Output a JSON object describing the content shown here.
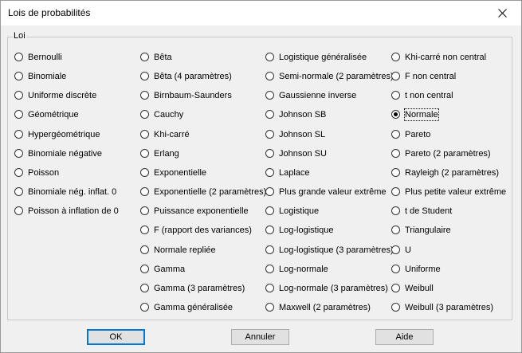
{
  "window": {
    "title": "Lois de probabilités"
  },
  "group": {
    "label": "Loi"
  },
  "columns": [
    [
      {
        "label": "Bernoulli",
        "checked": false
      },
      {
        "label": "Binomiale",
        "checked": false
      },
      {
        "label": "Uniforme discrète",
        "checked": false
      },
      {
        "label": "Géométrique",
        "checked": false
      },
      {
        "label": "Hypergéométrique",
        "checked": false
      },
      {
        "label": "Binomiale négative",
        "checked": false
      },
      {
        "label": "Poisson",
        "checked": false
      },
      {
        "label": "Binomiale nég. inflat. 0",
        "checked": false
      },
      {
        "label": "Poisson à inflation de 0",
        "checked": false
      }
    ],
    [
      {
        "label": "Bêta",
        "checked": false
      },
      {
        "label": "Bêta (4 paramètres)",
        "checked": false
      },
      {
        "label": "Birnbaum-Saunders",
        "checked": false
      },
      {
        "label": "Cauchy",
        "checked": false
      },
      {
        "label": "Khi-carré",
        "checked": false
      },
      {
        "label": "Erlang",
        "checked": false
      },
      {
        "label": "Exponentielle",
        "checked": false
      },
      {
        "label": "Exponentielle (2 paramètres)",
        "checked": false
      },
      {
        "label": "Puissance exponentielle",
        "checked": false
      },
      {
        "label": "F (rapport des variances)",
        "checked": false
      },
      {
        "label": "Normale repliée",
        "checked": false
      },
      {
        "label": "Gamma",
        "checked": false
      },
      {
        "label": "Gamma (3 paramètres)",
        "checked": false
      },
      {
        "label": "Gamma généralisée",
        "checked": false
      }
    ],
    [
      {
        "label": "Logistique généralisée",
        "checked": false
      },
      {
        "label": "Semi-normale (2 paramètres)",
        "checked": false
      },
      {
        "label": "Gaussienne inverse",
        "checked": false
      },
      {
        "label": "Johnson SB",
        "checked": false
      },
      {
        "label": "Johnson SL",
        "checked": false
      },
      {
        "label": "Johnson SU",
        "checked": false
      },
      {
        "label": "Laplace",
        "checked": false
      },
      {
        "label": "Plus grande valeur extrême",
        "checked": false
      },
      {
        "label": "Logistique",
        "checked": false
      },
      {
        "label": "Log-logistique",
        "checked": false
      },
      {
        "label": "Log-logistique (3 paramètres)",
        "checked": false
      },
      {
        "label": "Log-normale",
        "checked": false
      },
      {
        "label": "Log-normale (3 paramètres)",
        "checked": false
      },
      {
        "label": "Maxwell (2 paramètres)",
        "checked": false
      }
    ],
    [
      {
        "label": "Khi-carré non central",
        "checked": false
      },
      {
        "label": "F non central",
        "checked": false
      },
      {
        "label": "t non central",
        "checked": false
      },
      {
        "label": "Normale",
        "checked": true
      },
      {
        "label": "Pareto",
        "checked": false
      },
      {
        "label": "Pareto (2 paramètres)",
        "checked": false
      },
      {
        "label": "Rayleigh (2 paramètres)",
        "checked": false
      },
      {
        "label": "Plus petite valeur extrême",
        "checked": false
      },
      {
        "label": "t de Student",
        "checked": false
      },
      {
        "label": "Triangulaire",
        "checked": false
      },
      {
        "label": "U",
        "checked": false
      },
      {
        "label": "Uniforme",
        "checked": false
      },
      {
        "label": "Weibull",
        "checked": false
      },
      {
        "label": "Weibull (3 paramètres)",
        "checked": false
      }
    ]
  ],
  "buttons": {
    "ok": "OK",
    "cancel": "Annuler",
    "help": "Aide"
  }
}
